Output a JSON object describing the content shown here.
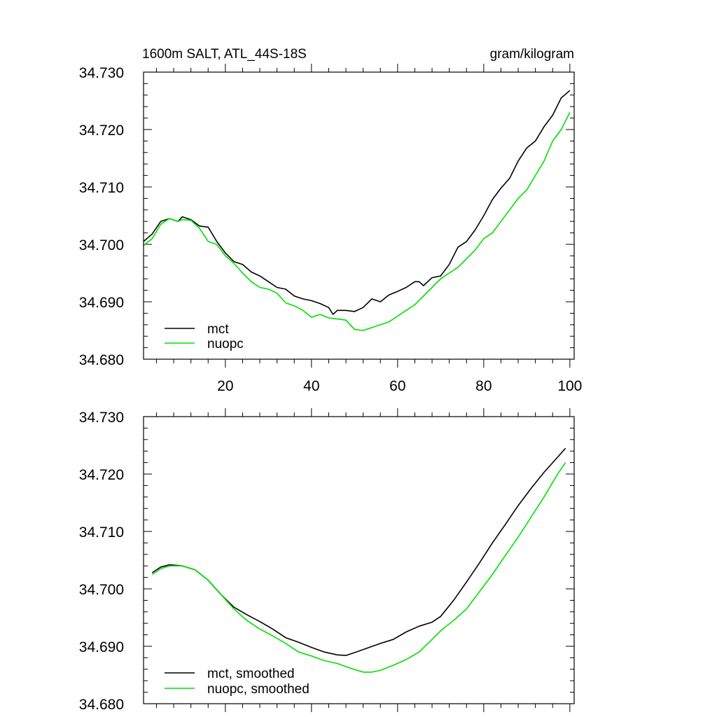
{
  "colors": {
    "mct": "#000000",
    "nuopc": "#00e000",
    "frame": "#000000"
  },
  "chart_data": [
    {
      "type": "line",
      "title": "1600m SALT, ATL_44S-18S",
      "units_label": "gram/kilogram",
      "xlim": [
        1,
        101
      ],
      "ylim": [
        34.68,
        34.73
      ],
      "xticks": [
        "20",
        "40",
        "60",
        "80",
        "100"
      ],
      "yticks": [
        "34.680",
        "34.690",
        "34.700",
        "34.710",
        "34.720",
        "34.730"
      ],
      "legend_placement": "bottom-left",
      "series": [
        {
          "name": "mct",
          "x": [
            1,
            3,
            5,
            7,
            9,
            10,
            12,
            14,
            16,
            18,
            20,
            22,
            24,
            26,
            28,
            30,
            32,
            34,
            36,
            38,
            40,
            42,
            44,
            45,
            46,
            48,
            50,
            52,
            54,
            56,
            58,
            60,
            62,
            64,
            65,
            66,
            68,
            70,
            72,
            74,
            76,
            78,
            80,
            82,
            84,
            86,
            88,
            90,
            92,
            94,
            96,
            98,
            100
          ],
          "y": [
            34.7005,
            34.7018,
            34.704,
            34.7045,
            34.704,
            34.7048,
            34.7043,
            34.7032,
            34.703,
            34.7005,
            34.6985,
            34.697,
            34.6965,
            34.6952,
            34.6945,
            34.6935,
            34.6925,
            34.6922,
            34.691,
            34.6905,
            34.6902,
            34.6897,
            34.689,
            34.6878,
            34.6885,
            34.6885,
            34.6883,
            34.689,
            34.6905,
            34.69,
            34.6912,
            34.6918,
            34.6925,
            34.6935,
            34.6935,
            34.6928,
            34.6942,
            34.6945,
            34.6965,
            34.6995,
            34.7005,
            34.7025,
            34.705,
            34.7078,
            34.7098,
            34.7115,
            34.7145,
            34.7168,
            34.718,
            34.7205,
            34.7225,
            34.7255,
            34.7268
          ]
        },
        {
          "name": "nuopc",
          "x": [
            1,
            3,
            5,
            7,
            9,
            10,
            12,
            14,
            16,
            18,
            20,
            22,
            24,
            26,
            28,
            30,
            32,
            34,
            36,
            38,
            40,
            42,
            44,
            46,
            48,
            50,
            52,
            54,
            56,
            58,
            60,
            62,
            64,
            66,
            68,
            70,
            72,
            74,
            76,
            78,
            80,
            82,
            84,
            86,
            88,
            90,
            92,
            94,
            96,
            98,
            100
          ],
          "y": [
            34.6998,
            34.701,
            34.7035,
            34.7045,
            34.704,
            34.7043,
            34.7042,
            34.7028,
            34.7005,
            34.7,
            34.698,
            34.6967,
            34.695,
            34.6935,
            34.6925,
            34.6922,
            34.6915,
            34.6898,
            34.6893,
            34.6885,
            34.6873,
            34.6878,
            34.6872,
            34.687,
            34.6868,
            34.6852,
            34.685,
            34.6855,
            34.686,
            34.6865,
            34.6875,
            34.6885,
            34.6895,
            34.691,
            34.6925,
            34.694,
            34.695,
            34.696,
            34.6975,
            34.699,
            34.701,
            34.702,
            34.704,
            34.706,
            34.708,
            34.7095,
            34.712,
            34.7145,
            34.718,
            34.72,
            34.723
          ]
        }
      ]
    },
    {
      "type": "line",
      "xlim": [
        1,
        101
      ],
      "ylim": [
        34.68,
        34.73
      ],
      "yticks": [
        "34.680",
        "34.690",
        "34.700",
        "34.710",
        "34.720",
        "34.730"
      ],
      "legend_placement": "bottom-left",
      "series": [
        {
          "name": "mct, smoothed",
          "x": [
            3,
            5,
            7,
            10,
            13,
            16,
            19,
            22,
            25,
            28,
            31,
            34,
            37,
            40,
            43,
            46,
            48,
            50,
            53,
            56,
            59,
            62,
            65,
            68,
            70,
            73,
            76,
            79,
            82,
            85,
            88,
            91,
            94,
            97,
            99
          ],
          "y": [
            34.7028,
            34.7038,
            34.7042,
            34.704,
            34.7033,
            34.7015,
            34.699,
            34.6968,
            34.6955,
            34.6943,
            34.693,
            34.6915,
            34.6907,
            34.6898,
            34.689,
            34.6885,
            34.6884,
            34.6889,
            34.6897,
            34.6905,
            34.6912,
            34.6925,
            34.6935,
            34.6942,
            34.6952,
            34.698,
            34.7012,
            34.7045,
            34.708,
            34.7112,
            34.7145,
            34.7175,
            34.7203,
            34.7228,
            34.7245
          ]
        },
        {
          "name": "nuopc, smoothed",
          "x": [
            3,
            5,
            7,
            10,
            13,
            16,
            19,
            22,
            25,
            28,
            31,
            34,
            37,
            40,
            43,
            46,
            49,
            52,
            54,
            56,
            59,
            62,
            65,
            68,
            70,
            73,
            76,
            79,
            82,
            85,
            88,
            91,
            94,
            97,
            99
          ],
          "y": [
            34.7025,
            34.7035,
            34.704,
            34.704,
            34.7033,
            34.7015,
            34.699,
            34.6965,
            34.6945,
            34.693,
            34.6918,
            34.6905,
            34.689,
            34.6883,
            34.6875,
            34.687,
            34.6862,
            34.6855,
            34.6855,
            34.6858,
            34.6867,
            34.6877,
            34.689,
            34.6912,
            34.6927,
            34.6945,
            34.6965,
            34.6995,
            34.7025,
            34.7058,
            34.709,
            34.7125,
            34.716,
            34.7198,
            34.722
          ]
        }
      ]
    }
  ]
}
